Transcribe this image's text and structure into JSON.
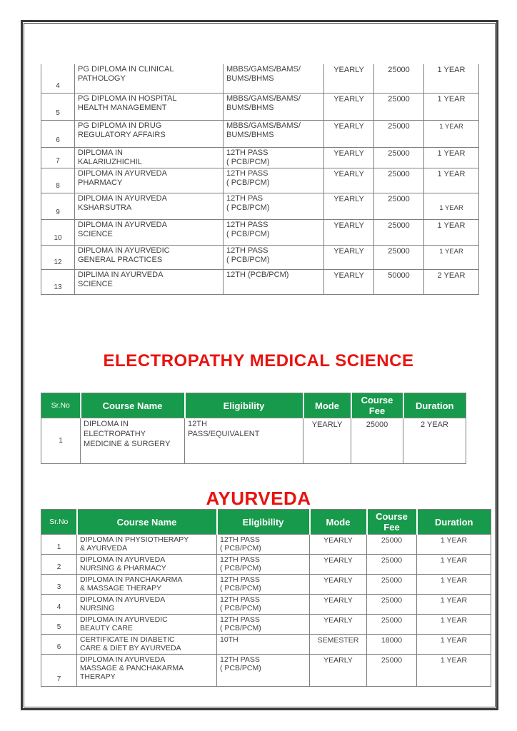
{
  "document": {
    "heading_electropathy": "ELECTROPATHY MEDICAL SCIENCE",
    "heading_ayurveda": "AYURVEDA"
  },
  "colors": {
    "heading_red": "#e8130f",
    "header_green": "#189a4c",
    "header_text": "#ffffff",
    "body_text": "#3f3f3f",
    "grid_line": "#7f7f7f",
    "page_border": "#3a3a3a"
  },
  "table_headers": {
    "sr": "Sr.No",
    "name": "Course Name",
    "eligibility": "Eligibility",
    "mode": "Mode",
    "fee": "Course\nFee",
    "duration": "Duration"
  },
  "pg_diploma_table": {
    "rows": [
      {
        "sr": "4",
        "name": "PG DIPLOMA IN CLINICAL\nPATHOLOGY",
        "eligibility": "MBBS/GAMS/BAMS/\nBUMS/BHMS",
        "mode": "YEARLY",
        "fee": "25000",
        "duration": "1 YEAR"
      },
      {
        "sr": "5",
        "name": "PG DIPLOMA IN HOSPITAL\nHEALTH MANAGEMENT",
        "eligibility": "MBBS/GAMS/BAMS/\nBUMS/BHMS",
        "mode": "YEARLY",
        "fee": "25000",
        "duration": "1 YEAR"
      },
      {
        "sr": "6",
        "name": "PG DIPLOMA IN DRUG\nREGULATORY AFFAIRS",
        "eligibility": "MBBS/GAMS/BAMS/\nBUMS/BHMS",
        "mode": "YEARLY",
        "fee": "25000",
        "duration": "1 YEAR"
      },
      {
        "sr": "7",
        "name": "DIPLOMA IN\nKALARIUZHICHIL",
        "eligibility": "12TH PASS\n( PCB/PCM)",
        "mode": "YEARLY",
        "fee": "25000",
        "duration": "1 YEAR"
      },
      {
        "sr": "8",
        "name": "DIPLOMA IN AYURVEDA\nPHARMACY",
        "eligibility": "12TH PASS\n( PCB/PCM)",
        "mode": "YEARLY",
        "fee": "25000",
        "duration": "1 YEAR"
      },
      {
        "sr": "9",
        "name": "DIPLOMA IN AYURVEDA\nKSHARSUTRA",
        "eligibility": "12TH PAS\n( PCB/PCM)",
        "mode": "YEARLY",
        "fee": "25000",
        "duration": "1 YEAR"
      },
      {
        "sr": "10",
        "name": "DIPLOMA IN AYURVEDA\nSCIENCE",
        "eligibility": "12TH PASS\n( PCB/PCM)",
        "mode": "YEARLY",
        "fee": "25000",
        "duration": "1 YEAR"
      },
      {
        "sr": "12",
        "name": "DIPLOMA IN AYURVEDIC\nGENERAL PRACTICES",
        "eligibility": "12TH PASS\n( PCB/PCM)",
        "mode": "YEARLY",
        "fee": "25000",
        "duration": "1 YEAR"
      },
      {
        "sr": "13",
        "name": "DIPLIMA IN AYURVEDA\nSCIENCE",
        "eligibility": "12TH (PCB/PCM)",
        "mode": "YEARLY",
        "fee": "50000",
        "duration": "2 YEAR"
      }
    ]
  },
  "electropathy_table": {
    "rows": [
      {
        "sr": "1",
        "name": "DIPLOMA IN\nELECTROPATHY\nMEDICINE & SURGERY",
        "eligibility": "12TH\nPASS/EQUIVALENT",
        "mode": "YEARLY",
        "fee": "25000",
        "duration": "2 YEAR"
      }
    ]
  },
  "ayurveda_table": {
    "rows": [
      {
        "sr": "1",
        "name": "DIPLOMA IN PHYSIOTHERAPY\n& AYURVEDA",
        "eligibility": "12TH PASS\n( PCB/PCM)",
        "mode": "YEARLY",
        "fee": "25000",
        "duration": "1 YEAR"
      },
      {
        "sr": "2",
        "name": "DIPLOMA IN AYURVEDA\nNURSING & PHARMACY",
        "eligibility": "12TH PASS\n( PCB/PCM)",
        "mode": "YEARLY",
        "fee": "25000",
        "duration": "1 YEAR"
      },
      {
        "sr": "3",
        "name": "DIPLOMA IN PANCHAKARMA\n& MASSAGE THERAPY",
        "eligibility": "12TH PASS\n( PCB/PCM)",
        "mode": "YEARLY",
        "fee": "25000",
        "duration": "1 YEAR"
      },
      {
        "sr": "4",
        "name": "DIPLOMA IN AYURVEDA\nNURSING",
        "eligibility": "12TH PASS\n( PCB/PCM)",
        "mode": "YEARLY",
        "fee": "25000",
        "duration": "1 YEAR"
      },
      {
        "sr": "5",
        "name": "DIPLOMA IN AYURVEDIC\nBEAUTY CARE",
        "eligibility": "12TH PASS\n( PCB/PCM)",
        "mode": "YEARLY",
        "fee": "25000",
        "duration": "1 YEAR"
      },
      {
        "sr": "6",
        "name": "CERTIFICATE IN DIABETIC\nCARE & DIET BY AYURVEDA",
        "eligibility": "10TH",
        "mode": "SEMESTER",
        "fee": "18000",
        "duration": "1 YEAR"
      },
      {
        "sr": "7",
        "name": "DIPLOMA IN AYURVEDA\nMASSAGE & PANCHAKARMA\nTHERAPY",
        "eligibility": "12TH PASS\n( PCB/PCM)",
        "mode": "YEARLY",
        "fee": "25000",
        "duration": "1 YEAR"
      }
    ]
  }
}
